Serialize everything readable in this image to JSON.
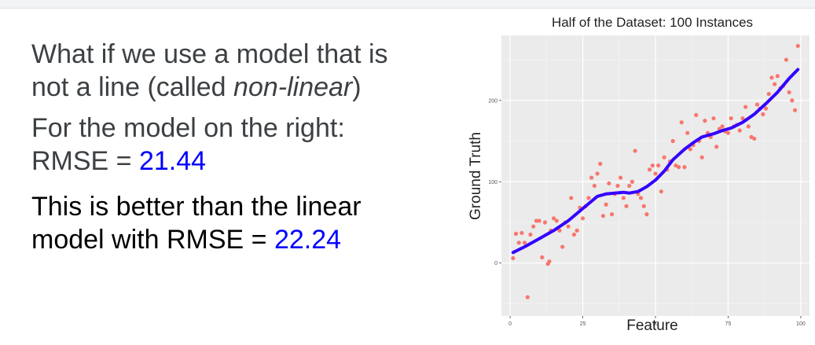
{
  "slide": {
    "line1": "What if we use a model that is",
    "line2_prefix": "not a line (called ",
    "line2_italic": "non-linear",
    "line2_suffix": ")",
    "line3": "For the model on the right:",
    "rmse_prefix": "RMSE = ",
    "rmse_value": "21.44",
    "line5": "This is better than the linear",
    "line6_prefix": "model with RMSE = ",
    "line6_value": "22.24",
    "accent_color": "#0000ff"
  },
  "chart_data": {
    "type": "scatter",
    "title": "Half of the Dataset: 100 Instances",
    "xlabel": "Feature",
    "ylabel": "Ground Truth",
    "xlim": [
      -3,
      103
    ],
    "ylim": [
      -65,
      280
    ],
    "xticks": [
      0,
      25,
      50,
      75,
      100
    ],
    "yticks": [
      0,
      100,
      200
    ],
    "grid": true,
    "background": "#ebebeb",
    "points_color": "#f8766d",
    "curve_color": "#3300ff",
    "points": [
      [
        1,
        6
      ],
      [
        2,
        36
      ],
      [
        3,
        25
      ],
      [
        4,
        37
      ],
      [
        5,
        25
      ],
      [
        6,
        -42
      ],
      [
        7,
        35
      ],
      [
        8,
        45
      ],
      [
        9,
        52
      ],
      [
        10,
        52
      ],
      [
        11,
        7
      ],
      [
        12,
        50
      ],
      [
        13,
        -1
      ],
      [
        13.5,
        2
      ],
      [
        14,
        40
      ],
      [
        15,
        55
      ],
      [
        16,
        52
      ],
      [
        17,
        40
      ],
      [
        18,
        20
      ],
      [
        19,
        50
      ],
      [
        20,
        45
      ],
      [
        21,
        80
      ],
      [
        22,
        35
      ],
      [
        23,
        40
      ],
      [
        24,
        68
      ],
      [
        25,
        55
      ],
      [
        26,
        70
      ],
      [
        27,
        80
      ],
      [
        28,
        105
      ],
      [
        29,
        95
      ],
      [
        30,
        110
      ],
      [
        31,
        122
      ],
      [
        32,
        58
      ],
      [
        33,
        72
      ],
      [
        34,
        98
      ],
      [
        35,
        60
      ],
      [
        36,
        85
      ],
      [
        37,
        95
      ],
      [
        38,
        105
      ],
      [
        39,
        80
      ],
      [
        40,
        70
      ],
      [
        41,
        95
      ],
      [
        42,
        100
      ],
      [
        43,
        138
      ],
      [
        44,
        85
      ],
      [
        45,
        80
      ],
      [
        46,
        70
      ],
      [
        47,
        60
      ],
      [
        48,
        115
      ],
      [
        49,
        120
      ],
      [
        50,
        110
      ],
      [
        51,
        120
      ],
      [
        52,
        88
      ],
      [
        53,
        130
      ],
      [
        54,
        115
      ],
      [
        55,
        125
      ],
      [
        56,
        150
      ],
      [
        57,
        120
      ],
      [
        58,
        118
      ],
      [
        59,
        173
      ],
      [
        60,
        118
      ],
      [
        61,
        160
      ],
      [
        62,
        140
      ],
      [
        63,
        145
      ],
      [
        64,
        182
      ],
      [
        65,
        150
      ],
      [
        66,
        130
      ],
      [
        67,
        175
      ],
      [
        68,
        160
      ],
      [
        69,
        155
      ],
      [
        70,
        178
      ],
      [
        71,
        143
      ],
      [
        72,
        165
      ],
      [
        73,
        168
      ],
      [
        74,
        162
      ],
      [
        75,
        160
      ],
      [
        76,
        178
      ],
      [
        77,
        168
      ],
      [
        78,
        170
      ],
      [
        79,
        163
      ],
      [
        80,
        178
      ],
      [
        81,
        192
      ],
      [
        82,
        168
      ],
      [
        83,
        155
      ],
      [
        84,
        153
      ],
      [
        85,
        195
      ],
      [
        86,
        190
      ],
      [
        87,
        183
      ],
      [
        88,
        190
      ],
      [
        89,
        208
      ],
      [
        90,
        228
      ],
      [
        91,
        220
      ],
      [
        92,
        230
      ],
      [
        93,
        215
      ],
      [
        94,
        218
      ],
      [
        95,
        250
      ],
      [
        96,
        210
      ],
      [
        97,
        200
      ],
      [
        98,
        188
      ],
      [
        99,
        267
      ]
    ],
    "curve": [
      [
        1,
        13
      ],
      [
        5,
        20
      ],
      [
        10,
        30
      ],
      [
        15,
        40
      ],
      [
        20,
        52
      ],
      [
        25,
        67
      ],
      [
        28,
        76
      ],
      [
        30,
        82
      ],
      [
        33,
        85
      ],
      [
        36,
        86
      ],
      [
        39,
        87
      ],
      [
        41,
        86
      ],
      [
        44,
        88
      ],
      [
        47,
        94
      ],
      [
        50,
        102
      ],
      [
        53,
        113
      ],
      [
        56,
        127
      ],
      [
        60,
        140
      ],
      [
        63,
        148
      ],
      [
        66,
        155
      ],
      [
        70,
        159
      ],
      [
        73,
        163
      ],
      [
        76,
        166
      ],
      [
        80,
        173
      ],
      [
        84,
        183
      ],
      [
        88,
        196
      ],
      [
        92,
        210
      ],
      [
        96,
        227
      ],
      [
        99,
        238
      ]
    ]
  }
}
